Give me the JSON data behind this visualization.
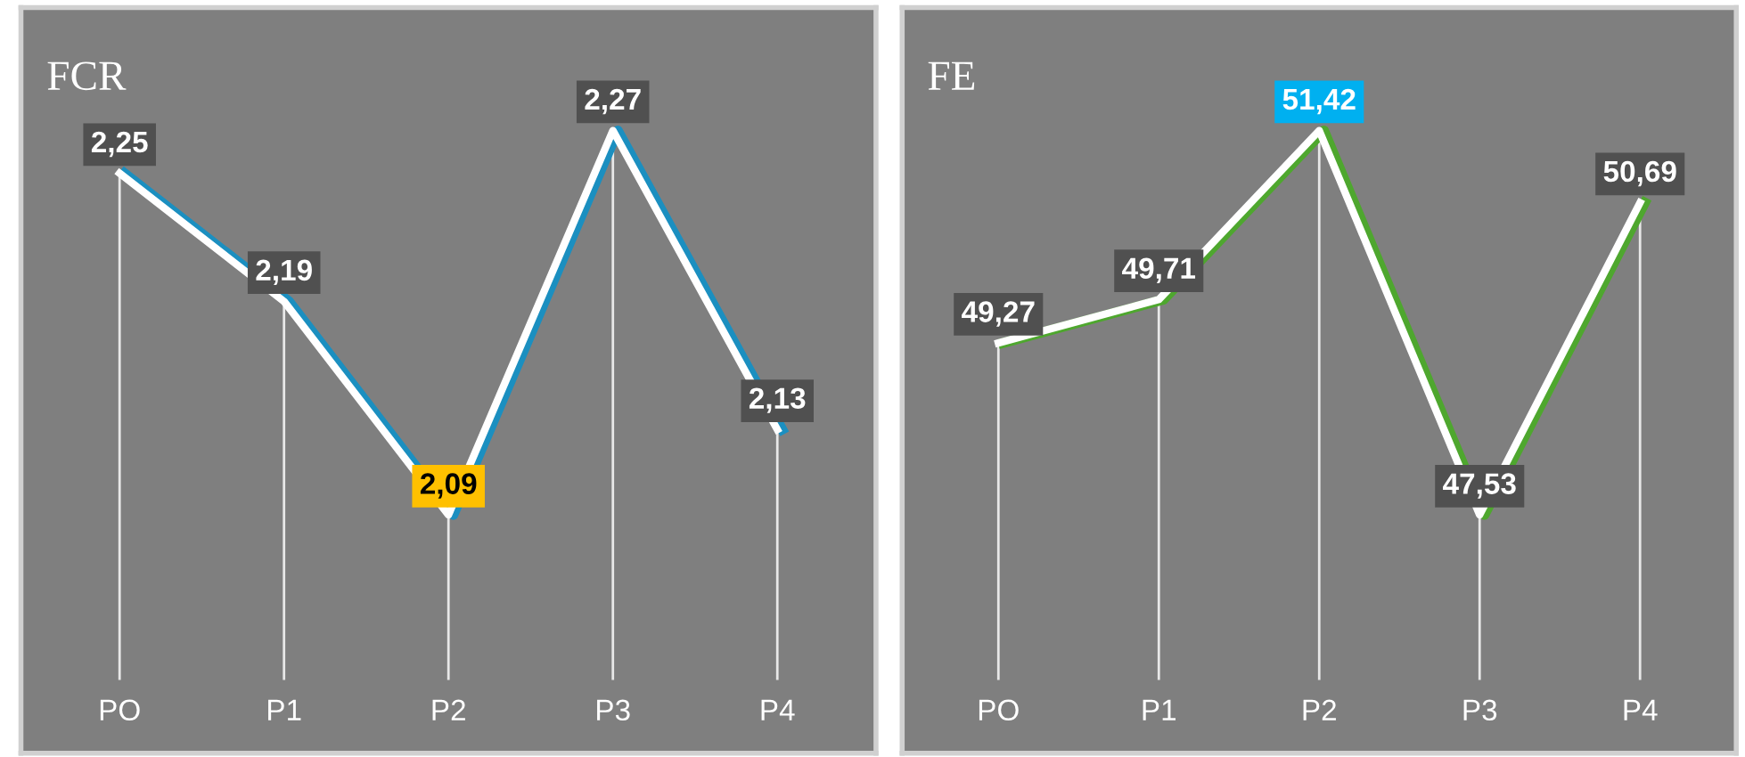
{
  "chart_data": [
    {
      "type": "line",
      "title": "FCR",
      "categories": [
        "PO",
        "P1",
        "P2",
        "P3",
        "P4"
      ],
      "tick_labels": "x",
      "grid": "x",
      "legend": false,
      "data_labels": true,
      "series": [
        {
          "color": "#1b8fc0",
          "values": [
            2.25,
            2.19,
            2.09,
            2.27,
            2.13
          ],
          "value_labels": [
            "2,25",
            "2,19",
            "2,09",
            "2,27",
            "2,13"
          ],
          "colors": [
            "#505050",
            "#505050",
            "#ffc000",
            "#505050",
            "#505050"
          ]
        }
      ]
    },
    {
      "type": "line",
      "title": "FE",
      "categories": [
        "PO",
        "P1",
        "P2",
        "P3",
        "P4"
      ],
      "tick_labels": "x",
      "grid": "x",
      "legend": false,
      "data_labels": true,
      "series": [
        {
          "color": "#4ea72e",
          "values": [
            49.27,
            49.71,
            51.42,
            47.53,
            50.69
          ],
          "value_labels": [
            "49,27",
            "49,71",
            "51,42",
            "47,53",
            "50,69"
          ],
          "colors": [
            "#505050",
            "#505050",
            "#00b0f0",
            "#505050",
            "#505050"
          ]
        }
      ]
    }
  ]
}
